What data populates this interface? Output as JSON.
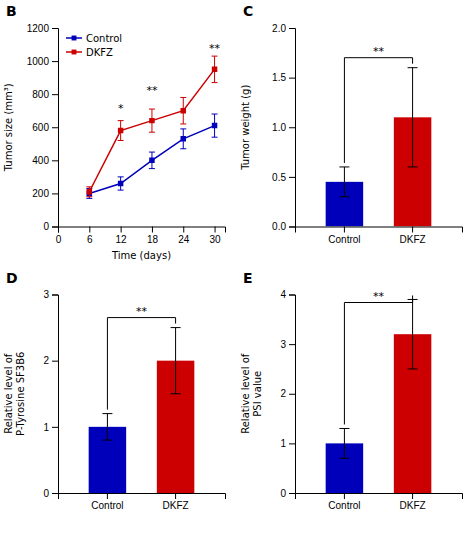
{
  "chart_data": [
    {
      "type": "line",
      "title": "B",
      "xlabel": "Time (days)",
      "ylabel": "Tumor size (mm³)",
      "x": [
        6,
        12,
        18,
        24,
        30
      ],
      "series": [
        {
          "name": "Control",
          "color": "#0000bb",
          "marker": "square",
          "values": [
            200,
            260,
            400,
            530,
            610
          ],
          "errors": [
            30,
            40,
            50,
            60,
            70
          ]
        },
        {
          "name": "DKFZ",
          "color": "#cc0000",
          "marker": "square",
          "values": [
            210,
            580,
            640,
            700,
            950
          ],
          "errors": [
            30,
            60,
            70,
            80,
            80
          ]
        }
      ],
      "xlim": [
        0,
        32
      ],
      "xticks": [
        0,
        6,
        12,
        18,
        24,
        30
      ],
      "ylim": [
        0,
        1200
      ],
      "yticks": [
        0,
        200,
        400,
        600,
        800,
        1000,
        1200
      ],
      "legend": "upper left",
      "grid": false,
      "annotations": [
        {
          "x": 12,
          "y": 690,
          "text": "*"
        },
        {
          "x": 18,
          "y": 800,
          "text": "**"
        },
        {
          "x": 30,
          "y": 1055,
          "text": "**"
        }
      ]
    },
    {
      "type": "bar",
      "title": "C",
      "ylabel": "Tumor weight (g)",
      "categories": [
        "Control",
        "DKFZ"
      ],
      "values": [
        0.45,
        1.1
      ],
      "errors": [
        0.15,
        0.5
      ],
      "colors": [
        "#0000bb",
        "#cc0000"
      ],
      "ylim": [
        0,
        2.0
      ],
      "yticks": [
        {
          "value": 0,
          "label": "0.0"
        },
        0.5,
        {
          "value": 1,
          "label": "1.0"
        },
        1.5,
        {
          "value": 2,
          "label": "2.0"
        }
      ],
      "grid": false,
      "annotations": [
        {
          "text": "**"
        }
      ]
    },
    {
      "type": "bar",
      "title": "D",
      "ylabel": "Relative level of\nP-Tyrosine SF3B6",
      "categories": [
        "Control",
        "DKFZ"
      ],
      "values": [
        1.0,
        2.0
      ],
      "errors": [
        0.2,
        0.5
      ],
      "colors": [
        "#0000bb",
        "#cc0000"
      ],
      "ylim": [
        0,
        3
      ],
      "yticks": [
        0,
        1,
        2,
        3
      ],
      "grid": false,
      "annotations": [
        {
          "text": "**"
        }
      ]
    },
    {
      "type": "bar",
      "title": "E",
      "ylabel": "Relative level of\nPSI value",
      "categories": [
        "Control",
        "DKFZ"
      ],
      "values": [
        1.0,
        3.2
      ],
      "errors": [
        0.3,
        0.7
      ],
      "colors": [
        "#0000bb",
        "#cc0000"
      ],
      "ylim": [
        0,
        4
      ],
      "yticks": [
        0,
        1,
        2,
        3,
        4
      ],
      "grid": false,
      "annotations": [
        {
          "text": "**"
        }
      ]
    }
  ]
}
